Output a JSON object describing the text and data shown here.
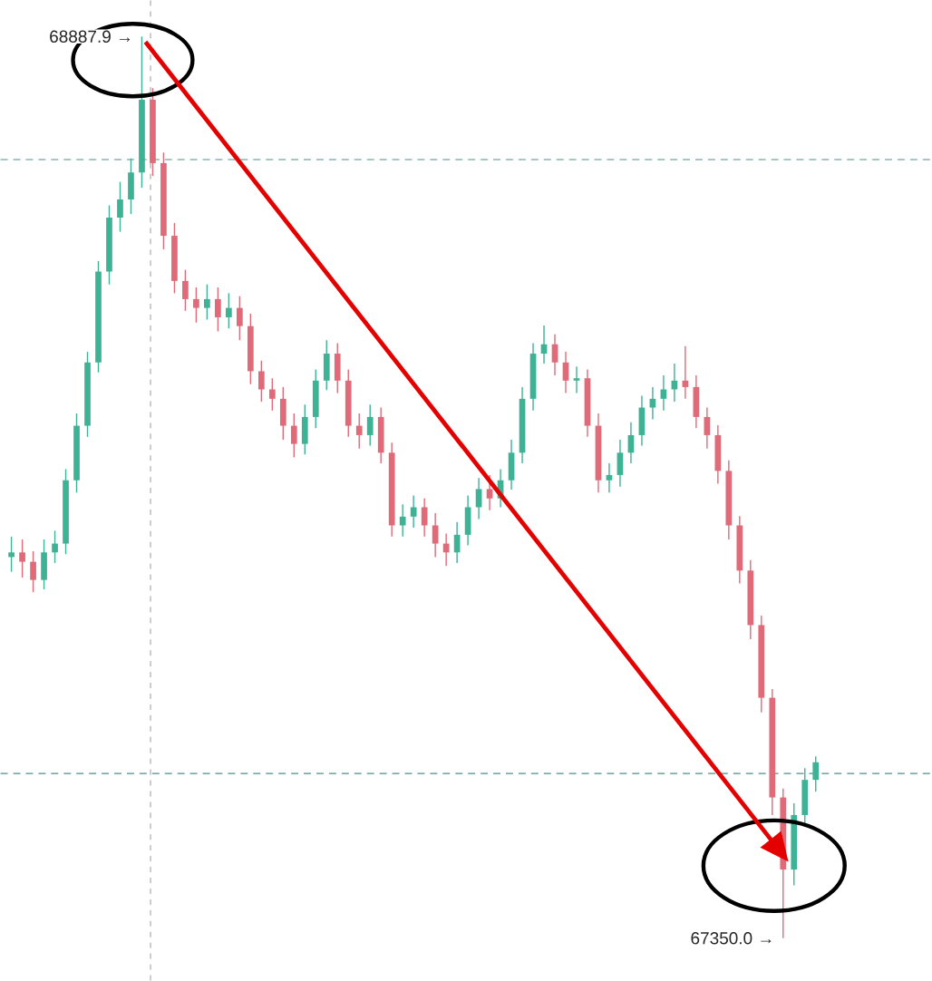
{
  "chart_data": {
    "type": "candlestick",
    "categories": [
      null,
      null,
      null,
      null,
      null,
      null,
      null,
      null,
      null,
      null,
      null,
      null,
      null,
      null,
      null,
      null,
      null,
      null,
      null,
      null,
      null,
      null,
      null,
      null,
      null,
      null,
      null,
      null,
      null,
      null,
      null,
      null,
      null,
      null,
      null,
      null,
      null,
      null,
      null,
      null,
      null,
      null,
      null,
      null,
      null,
      null,
      null,
      null,
      null,
      null,
      null,
      null,
      null,
      null,
      null,
      null,
      null,
      null,
      null,
      null,
      null,
      null,
      null,
      null,
      null,
      null,
      null,
      null,
      null,
      null,
      null,
      null,
      null,
      null,
      null
    ],
    "ohlc": [
      [
        68000,
        68035,
        67975,
        68008
      ],
      [
        68008,
        68030,
        67965,
        67992
      ],
      [
        67992,
        68010,
        67940,
        67961
      ],
      [
        67961,
        68030,
        67945,
        68008
      ],
      [
        68008,
        68045,
        67990,
        68023
      ],
      [
        68023,
        68150,
        68005,
        68131
      ],
      [
        68131,
        68245,
        68110,
        68224
      ],
      [
        68224,
        68350,
        68205,
        68332
      ],
      [
        68332,
        68505,
        68315,
        68487
      ],
      [
        68487,
        68600,
        68465,
        68579
      ],
      [
        68579,
        68640,
        68555,
        68610
      ],
      [
        68610,
        68680,
        68585,
        68656
      ],
      [
        68656,
        68887.9,
        68630,
        68780
      ],
      [
        68780,
        68800,
        68650,
        68672
      ],
      [
        68672,
        68690,
        68525,
        68548
      ],
      [
        68548,
        68570,
        68450,
        68471
      ],
      [
        68471,
        68490,
        68420,
        68440
      ],
      [
        68440,
        68460,
        68400,
        68425
      ],
      [
        68425,
        68465,
        68405,
        68440
      ],
      [
        68440,
        68460,
        68385,
        68409
      ],
      [
        68409,
        68450,
        68390,
        68425
      ],
      [
        68425,
        68445,
        68370,
        68394
      ],
      [
        68394,
        68415,
        68295,
        68317
      ],
      [
        68317,
        68335,
        68265,
        68286
      ],
      [
        68286,
        68305,
        68250,
        68270
      ],
      [
        68270,
        68290,
        68200,
        68224
      ],
      [
        68224,
        68245,
        68170,
        68193
      ],
      [
        68193,
        68260,
        68175,
        68239
      ],
      [
        68239,
        68320,
        68220,
        68301
      ],
      [
        68301,
        68370,
        68285,
        68347
      ],
      [
        68347,
        68365,
        68280,
        68301
      ],
      [
        68301,
        68320,
        68205,
        68224
      ],
      [
        68224,
        68245,
        68185,
        68208
      ],
      [
        68208,
        68260,
        68190,
        68239
      ],
      [
        68239,
        68255,
        68160,
        68178
      ],
      [
        68178,
        68195,
        68035,
        68054
      ],
      [
        68054,
        68090,
        68035,
        68069
      ],
      [
        68069,
        68105,
        68050,
        68085
      ],
      [
        68085,
        68100,
        68035,
        68054
      ],
      [
        68054,
        68075,
        68000,
        68023
      ],
      [
        68023,
        68040,
        67985,
        68008
      ],
      [
        68008,
        68060,
        67990,
        68038
      ],
      [
        68038,
        68105,
        68020,
        68085
      ],
      [
        68085,
        68135,
        68065,
        68116
      ],
      [
        68116,
        68140,
        68080,
        68100
      ],
      [
        68100,
        68150,
        68085,
        68131
      ],
      [
        68131,
        68200,
        68115,
        68178
      ],
      [
        68178,
        68290,
        68160,
        68270
      ],
      [
        68270,
        68365,
        68250,
        68347
      ],
      [
        68347,
        68395,
        68330,
        68363
      ],
      [
        68363,
        68380,
        68310,
        68332
      ],
      [
        68332,
        68350,
        68280,
        68301
      ],
      [
        68301,
        68325,
        68280,
        68305
      ],
      [
        68305,
        68320,
        68205,
        68224
      ],
      [
        68224,
        68245,
        68110,
        68131
      ],
      [
        68131,
        68160,
        68110,
        68140
      ],
      [
        68140,
        68200,
        68120,
        68178
      ],
      [
        68178,
        68230,
        68160,
        68208
      ],
      [
        68208,
        68275,
        68190,
        68255
      ],
      [
        68255,
        68290,
        68235,
        68270
      ],
      [
        68270,
        68310,
        68250,
        68286
      ],
      [
        68286,
        68330,
        68265,
        68301
      ],
      [
        68301,
        68360,
        68270,
        68290
      ],
      [
        68290,
        68310,
        68220,
        68239
      ],
      [
        68239,
        68255,
        68185,
        68208
      ],
      [
        68208,
        68225,
        68125,
        68147
      ],
      [
        68147,
        68165,
        68030,
        68054
      ],
      [
        68054,
        68070,
        67955,
        67977
      ],
      [
        67977,
        67995,
        67860,
        67884
      ],
      [
        67884,
        67900,
        67735,
        67760
      ],
      [
        67760,
        67775,
        67560,
        67590
      ],
      [
        67590,
        67605,
        67350.0,
        67467
      ],
      [
        67467,
        67580,
        67440,
        67560
      ],
      [
        67560,
        67640,
        67540,
        67620
      ],
      [
        67620,
        67660,
        67600,
        67650
      ]
    ],
    "ref_lines": [
      {
        "axis": "y",
        "value": 68678,
        "color": "#4f8f88",
        "line_style": "dashed"
      },
      {
        "axis": "y",
        "value": 67631,
        "color": "#4f8f88",
        "line_style": "dashed"
      }
    ],
    "annotations": [
      "68887.9 →",
      "67350.0 →"
    ]
  }
}
